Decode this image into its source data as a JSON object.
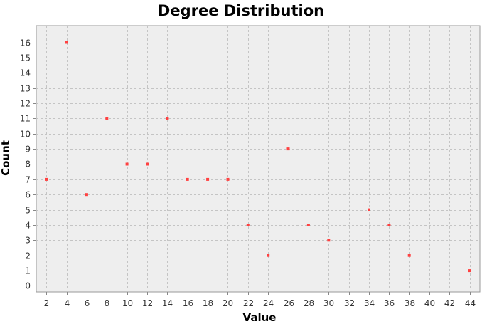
{
  "chart_data": {
    "type": "scatter",
    "title": "Degree Distribution",
    "xlabel": "Value",
    "ylabel": "Count",
    "xlim": [
      1,
      45
    ],
    "ylim": [
      -0.4,
      17.1
    ],
    "x_ticks": [
      2,
      4,
      6,
      8,
      10,
      12,
      14,
      16,
      18,
      20,
      22,
      24,
      26,
      28,
      30,
      32,
      34,
      36,
      38,
      40,
      42,
      44
    ],
    "y_ticks": [
      0,
      1,
      2,
      3,
      4,
      5,
      6,
      7,
      8,
      9,
      10,
      11,
      12,
      13,
      14,
      15,
      16
    ],
    "grid": true,
    "legend": "none",
    "point_color": "#ff4040",
    "series": [
      {
        "x": [
          2,
          4,
          6,
          8,
          10,
          12,
          14,
          16,
          18,
          20,
          22,
          24,
          26,
          28,
          30,
          34,
          36,
          38,
          44
        ],
        "y": [
          7,
          16,
          6,
          11,
          8,
          8,
          11,
          7,
          7,
          7,
          4,
          2,
          9,
          4,
          3,
          5,
          4,
          2,
          1
        ]
      }
    ]
  }
}
